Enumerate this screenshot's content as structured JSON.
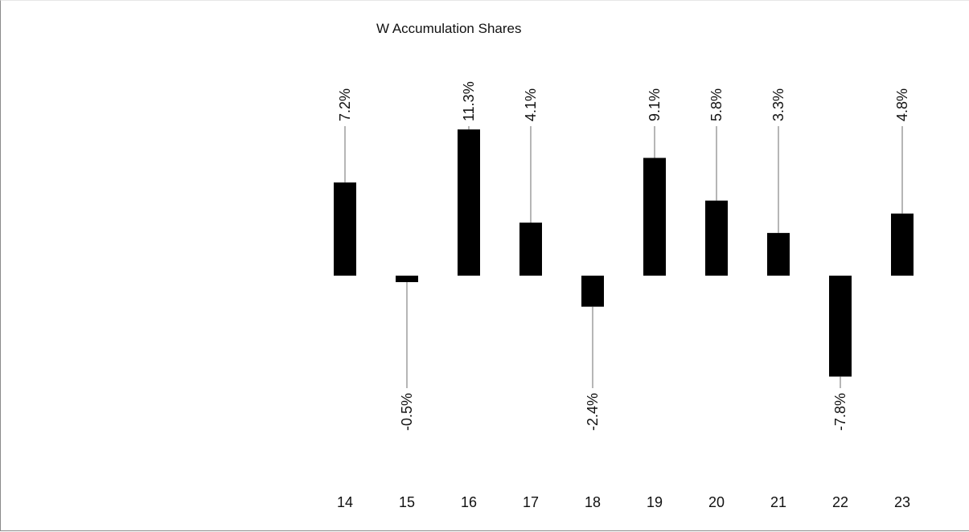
{
  "chart_data": {
    "type": "bar",
    "title": "W Accumulation Shares",
    "categories": [
      "14",
      "15",
      "16",
      "17",
      "18",
      "19",
      "20",
      "21",
      "22",
      "23"
    ],
    "values": [
      7.2,
      -0.5,
      11.3,
      4.1,
      -2.4,
      9.1,
      5.8,
      3.3,
      -7.8,
      4.8
    ],
    "value_labels": [
      "7.2%",
      "-0.5%",
      "11.3%",
      "4.1%",
      "-2.4%",
      "9.1%",
      "5.8%",
      "3.3%",
      "-7.8%",
      "4.8%"
    ],
    "xlabel": "",
    "ylabel": "",
    "unit": "%",
    "grid": false,
    "legend": "none",
    "bar_color": "#000000",
    "leader_line_color": "#6e6e6e"
  }
}
